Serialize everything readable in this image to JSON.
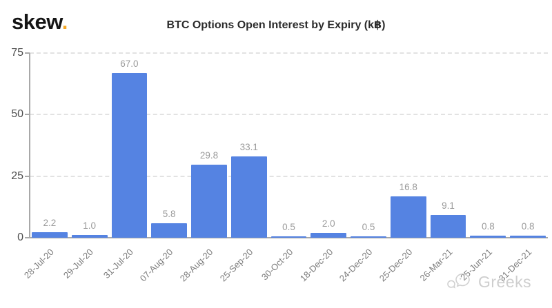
{
  "logo": {
    "text": "skew",
    "dot": ".",
    "dot_color": "#F5A623"
  },
  "watermark": {
    "text": "Greeks",
    "icon": "wechat-icon",
    "color": "#c9c9c9"
  },
  "chart_data": {
    "type": "bar",
    "title": "BTC Options Open Interest by Expiry (k฿)",
    "categories": [
      "28-Jul-20",
      "29-Jul-20",
      "31-Jul-20",
      "07-Aug-20",
      "28-Aug-20",
      "25-Sep-20",
      "30-Oct-20",
      "18-Dec-20",
      "24-Dec-20",
      "25-Dec-20",
      "26-Mar-21",
      "25-Jun-21",
      "31-Dec-21"
    ],
    "values": [
      2.2,
      1.0,
      67.0,
      5.8,
      29.8,
      33.1,
      0.5,
      2.0,
      0.5,
      16.8,
      9.1,
      0.8,
      0.8
    ],
    "xlabel": "",
    "ylabel": "",
    "ylim": [
      0,
      75
    ],
    "yticks": [
      0,
      25,
      50,
      75
    ],
    "bar_color": "#5583e2",
    "grid": "horizontal-dashed",
    "gridline_color": "#e2e2e2",
    "axis_color": "#a8a8a8",
    "value_label_color": "#9a9a9a",
    "tick_label_color": "#4d4d4d",
    "x_label_color": "#7c7c7c",
    "legend": "none"
  }
}
